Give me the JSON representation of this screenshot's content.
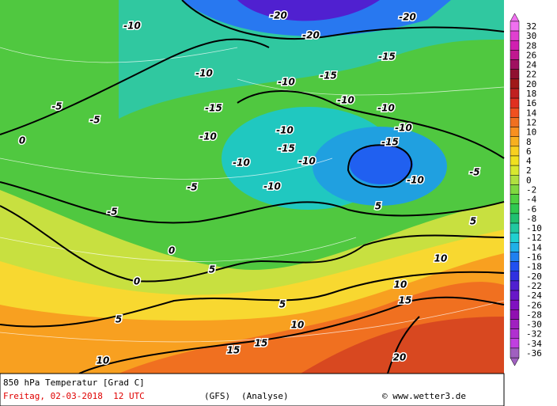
{
  "map": {
    "contour_labels": [
      -20,
      -20,
      -20,
      -10,
      -10,
      -10,
      -15,
      -15,
      -10,
      -10,
      -10,
      -15,
      -10,
      -15,
      -10,
      -10,
      -15,
      -10,
      -10,
      -10,
      -5,
      -5,
      -5,
      -5,
      0,
      0,
      0,
      5,
      5,
      5,
      10,
      10,
      10,
      10,
      15,
      15,
      15,
      20,
      -5,
      5,
      5
    ]
  },
  "legend": {
    "labels": [
      32,
      30,
      28,
      26,
      24,
      22,
      20,
      18,
      16,
      14,
      12,
      10,
      8,
      6,
      4,
      2,
      0,
      -2,
      -4,
      -6,
      -8,
      -10,
      -12,
      -14,
      -16,
      -18,
      -20,
      -22,
      -24,
      -26,
      -28,
      -30,
      -32,
      -34,
      -36
    ],
    "colors": [
      "#f070f0",
      "#e040d0",
      "#d020b0",
      "#c01890",
      "#a01060",
      "#901030",
      "#a01818",
      "#c02020",
      "#e03020",
      "#f05020",
      "#f07020",
      "#f89020",
      "#f8b020",
      "#f8d020",
      "#f0e020",
      "#d8e830",
      "#b0e040",
      "#80d840",
      "#50d040",
      "#30c850",
      "#20c070",
      "#20c8a0",
      "#20d0d0",
      "#20b0e8",
      "#2080f0",
      "#2050f0",
      "#3030e0",
      "#5020d0",
      "#6818c8",
      "#8010c0",
      "#9010b0",
      "#a020c0",
      "#b030d0",
      "#c040e0",
      "#a060c0"
    ]
  },
  "footer": {
    "title": "850 hPa Temperatur [Grad C]",
    "date": "Freitag, 02-03-2018  12 UTC",
    "model": "(GFS)",
    "run": "(Analyse)",
    "credit": "© www.wetter3.de"
  }
}
